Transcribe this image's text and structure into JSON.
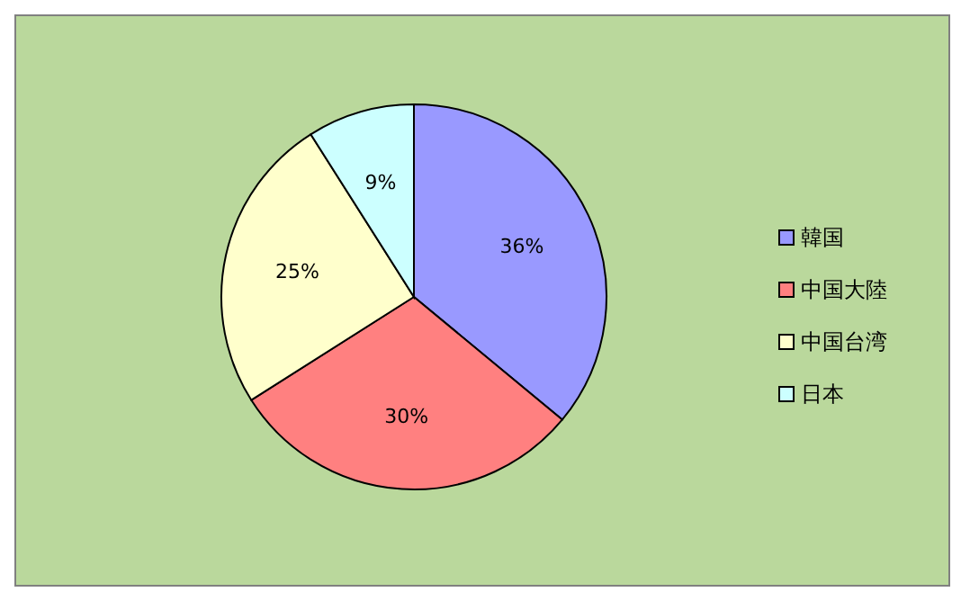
{
  "chart_data": {
    "type": "pie",
    "categories": [
      "韓国",
      "中国大陸",
      "中国台湾",
      "日本"
    ],
    "values": [
      36,
      30,
      25,
      9
    ],
    "colors": [
      "#9999ff",
      "#ff8080",
      "#ffffcc",
      "#ccffff"
    ],
    "value_labels": [
      "36%",
      "30%",
      "25%",
      "9%"
    ],
    "legend": "right"
  }
}
